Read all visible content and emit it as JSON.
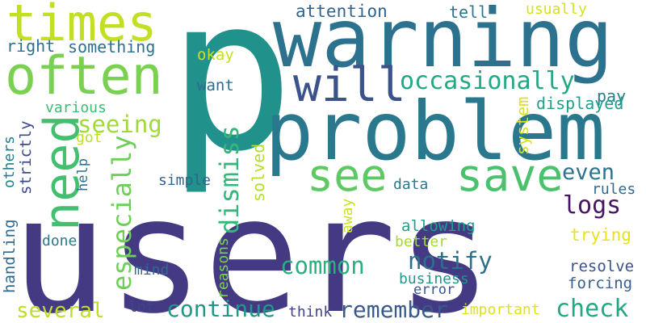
{
  "word_cloud": {
    "words": [
      {
        "text": "p",
        "color": "#21918c"
      },
      {
        "text": "users",
        "color": "#443983"
      },
      {
        "text": "warning",
        "color": "#2c728e"
      },
      {
        "text": "problem",
        "color": "#2a788e"
      },
      {
        "text": "times",
        "color": "#c2df23"
      },
      {
        "text": "often",
        "color": "#7ad151"
      },
      {
        "text": "will",
        "color": "#3b528b"
      },
      {
        "text": "see",
        "color": "#5ec962"
      },
      {
        "text": "save",
        "color": "#4ac16d"
      },
      {
        "text": "need",
        "color": "#44bf70"
      },
      {
        "text": "occasionally",
        "color": "#22a884"
      },
      {
        "text": "seeing",
        "color": "#a0da39"
      },
      {
        "text": "attention",
        "color": "#33638d"
      },
      {
        "text": "tell",
        "color": "#2a788e"
      },
      {
        "text": "usually",
        "color": "#d2e21b"
      },
      {
        "text": "pay",
        "color": "#277f8e"
      },
      {
        "text": "something",
        "color": "#2c728e"
      },
      {
        "text": "right",
        "color": "#2e6e8e"
      },
      {
        "text": "okay",
        "color": "#c8e020"
      },
      {
        "text": "want",
        "color": "#2f6c8e"
      },
      {
        "text": "various",
        "color": "#3dbc74"
      },
      {
        "text": "displayed",
        "color": "#1f9e89"
      },
      {
        "text": "system",
        "color": "#d8e219"
      },
      {
        "text": "even",
        "color": "#2c728e"
      },
      {
        "text": "logs",
        "color": "#471365"
      },
      {
        "text": "got",
        "color": "#bddf26"
      },
      {
        "text": "especially",
        "color": "#6ece58"
      },
      {
        "text": "dismiss",
        "color": "#35b779"
      },
      {
        "text": "solved",
        "color": "#b5de2b"
      },
      {
        "text": "help",
        "color": "#2d708e"
      },
      {
        "text": "strictly",
        "color": "#3e4989"
      },
      {
        "text": "others",
        "color": "#287c8e"
      },
      {
        "text": "handling",
        "color": "#31688e"
      },
      {
        "text": "simple",
        "color": "#33638d"
      },
      {
        "text": "data",
        "color": "#2a788e"
      },
      {
        "text": "away",
        "color": "#cde11d"
      },
      {
        "text": "rules",
        "color": "#31688e"
      },
      {
        "text": "trying",
        "color": "#e5e419"
      },
      {
        "text": "allowing",
        "color": "#1fa088"
      },
      {
        "text": "better",
        "color": "#a5db36"
      },
      {
        "text": "notify",
        "color": "#2d708e"
      },
      {
        "text": "common",
        "color": "#2ab07f"
      },
      {
        "text": "done",
        "color": "#2a788e"
      },
      {
        "text": "mind",
        "color": "#31688e"
      },
      {
        "text": "reasons",
        "color": "#7ad151"
      },
      {
        "text": "business",
        "color": "#1f968b"
      },
      {
        "text": "error",
        "color": "#39568c"
      },
      {
        "text": "resolve",
        "color": "#3b528b"
      },
      {
        "text": "forcing",
        "color": "#355f8d"
      },
      {
        "text": "several",
        "color": "#bddf26"
      },
      {
        "text": "continue",
        "color": "#1f988b"
      },
      {
        "text": "lot",
        "color": "#414487"
      },
      {
        "text": "think",
        "color": "#404688"
      },
      {
        "text": "remember",
        "color": "#38598c"
      },
      {
        "text": "important",
        "color": "#dde318"
      },
      {
        "text": "check",
        "color": "#22a884"
      }
    ]
  }
}
